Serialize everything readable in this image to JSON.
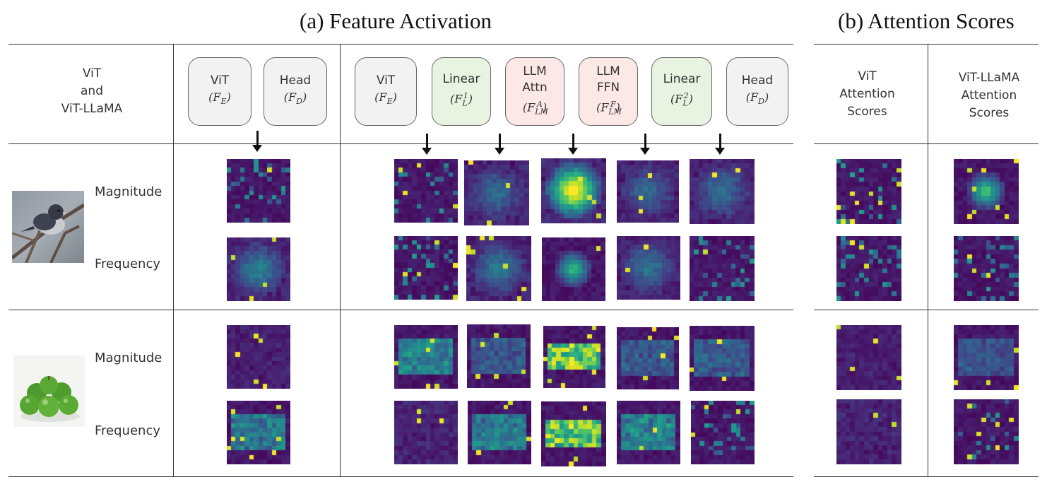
{
  "titles": {
    "a": "(a) Feature Activation",
    "b": "(b) Attention Scores"
  },
  "header": {
    "row_label": [
      "ViT",
      "and",
      "ViT-LLaMA"
    ],
    "vit_group": [
      {
        "name": "ViT",
        "symbol": "(F_E)",
        "color": "#f2f2f2"
      },
      {
        "name": "Head",
        "symbol": "(F_D)",
        "color": "#f2f2f2"
      }
    ],
    "llama_group": [
      {
        "name": "ViT",
        "symbol": "(F_E)",
        "color": "#f2f2f2"
      },
      {
        "name": "Linear",
        "symbol": "(F_L^1)",
        "color": "#e9f3e1"
      },
      {
        "name": "LLM Attn",
        "symbol": "(F_LM^A)",
        "color": "#fde8e8"
      },
      {
        "name": "LLM FFN",
        "symbol": "(F_LM^F)",
        "color": "#fde8e8"
      },
      {
        "name": "Linear",
        "symbol": "(F_L^2)",
        "color": "#e9f3e1"
      },
      {
        "name": "Head",
        "symbol": "(F_D)",
        "color": "#f2f2f2"
      }
    ],
    "attn_vit": [
      "ViT",
      "Attention",
      "Scores"
    ],
    "attn_llama": [
      "ViT-LLaMA",
      "Attention",
      "Scores"
    ]
  },
  "rows": [
    {
      "image": "bird",
      "labels": [
        "Magnitude",
        "Frequency"
      ]
    },
    {
      "image": "apples",
      "labels": [
        "Magnitude",
        "Frequency"
      ]
    }
  ],
  "colormap": "viridis",
  "icons": [
    "down-arrow-icon",
    "bird-photo",
    "green-apples-photo"
  ]
}
